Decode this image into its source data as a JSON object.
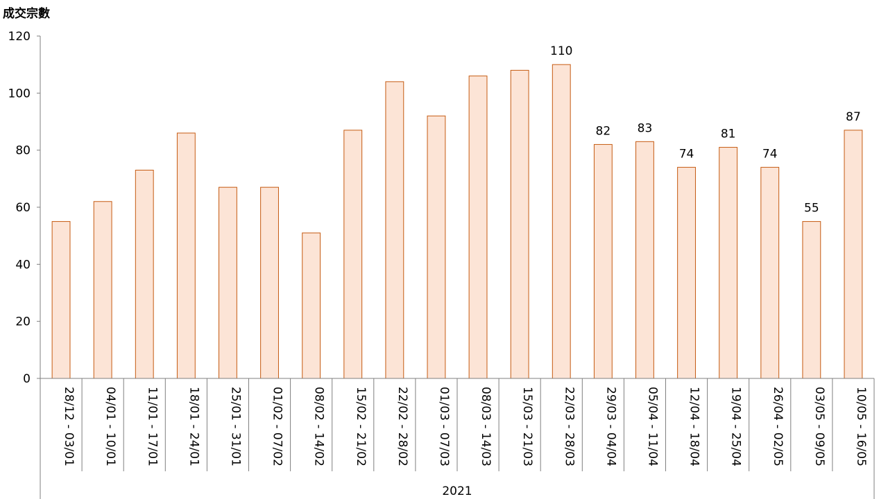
{
  "chart_data": {
    "type": "bar",
    "title": "",
    "ylabel": "成交宗數",
    "xlabel": "",
    "group_label": "2021",
    "ylim": [
      0,
      120
    ],
    "yticks": [
      0,
      20,
      40,
      60,
      80,
      100,
      120
    ],
    "grid": false,
    "categories": [
      "28/12 - 03/01",
      "04/01 - 10/01",
      "11/01 - 17/01",
      "18/01 - 24/01",
      "25/01 - 31/01",
      "01/02 - 07/02",
      "08/02 - 14/02",
      "15/02 - 21/02",
      "22/02 - 28/02",
      "01/03 - 07/03",
      "08/03 - 14/03",
      "15/03 - 21/03",
      "22/03 - 28/03",
      "29/03 - 04/04",
      "05/04 - 11/04",
      "12/04 - 18/04",
      "19/04 - 25/04",
      "26/04 - 02/05",
      "03/05 - 09/05",
      "10/05 - 16/05"
    ],
    "values": [
      55,
      62,
      73,
      86,
      67,
      67,
      51,
      87,
      104,
      92,
      106,
      108,
      110,
      82,
      83,
      74,
      81,
      74,
      55,
      87
    ],
    "data_labels": [
      null,
      null,
      null,
      null,
      null,
      null,
      null,
      null,
      null,
      null,
      null,
      null,
      "110",
      "82",
      "83",
      "74",
      "81",
      "74",
      "55",
      "87"
    ],
    "colors": {
      "bar_fill": "#fce4d6",
      "bar_stroke": "#c55a11",
      "axis": "#7f7f7f"
    }
  }
}
